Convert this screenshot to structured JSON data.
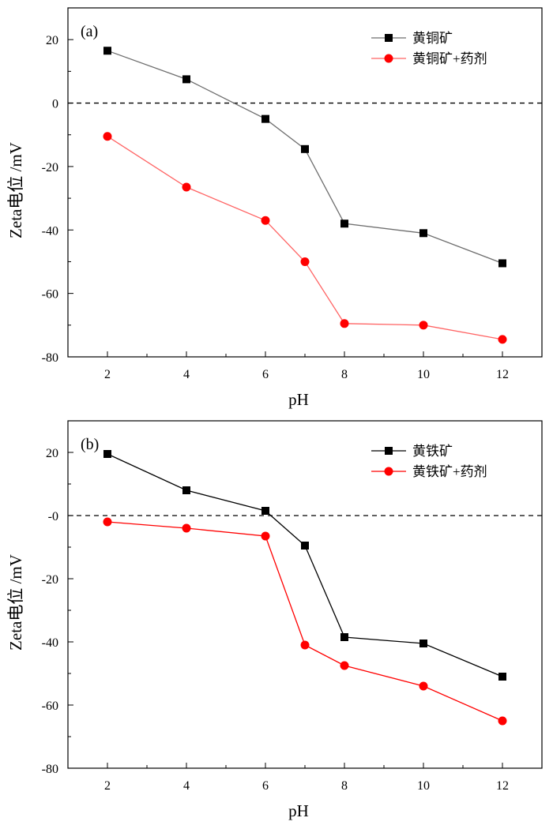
{
  "chart_data": [
    {
      "type": "line",
      "panel_label": "(a)",
      "xlabel": "pH",
      "ylabel": "Zeta电位 /mV",
      "x_ticks": [
        "2",
        "4",
        "6",
        "8",
        "10",
        "12"
      ],
      "y_ticks": [
        "20",
        "0",
        "-20",
        "-40",
        "-60",
        "-80"
      ],
      "xlim": [
        1,
        13
      ],
      "ylim": [
        -80,
        30
      ],
      "x": [
        2,
        4,
        6,
        7,
        8,
        10,
        12
      ],
      "reference_line": 0,
      "legend_position": "top-right",
      "series": [
        {
          "name": "黄铜矿",
          "marker": "square",
          "color": "#000000",
          "line_color": "#6e6e6e",
          "values": [
            16.5,
            7.5,
            -5,
            -14.5,
            -38,
            -41,
            -50.5
          ]
        },
        {
          "name": "黄铜矿+药剂",
          "marker": "circle",
          "color": "#ff0000",
          "line_color": "#ff6464",
          "values": [
            -10.5,
            -26.5,
            -37,
            -50,
            -69.5,
            -70,
            -74.5
          ]
        }
      ]
    },
    {
      "type": "line",
      "panel_label": "(b)",
      "xlabel": "pH",
      "ylabel": "Zeta电位 /mV",
      "x_ticks": [
        "2",
        "4",
        "6",
        "8",
        "10",
        "12"
      ],
      "y_ticks": [
        "20",
        "-0",
        "-20",
        "-40",
        "-60",
        "-80"
      ],
      "xlim": [
        1,
        13
      ],
      "ylim": [
        -80,
        30
      ],
      "x": [
        2,
        4,
        6,
        7,
        8,
        10,
        12
      ],
      "reference_line": 0,
      "legend_position": "top-right",
      "series": [
        {
          "name": "黄铁矿",
          "marker": "square",
          "color": "#000000",
          "line_color": "#000000",
          "values": [
            19.5,
            8,
            1.5,
            -9.5,
            -38.5,
            -40.5,
            -51
          ]
        },
        {
          "name": "黄铁矿+药剂",
          "marker": "circle",
          "color": "#ff0000",
          "line_color": "#ff0000",
          "values": [
            -2,
            -4,
            -6.5,
            -41,
            -47.5,
            -54,
            -65
          ]
        }
      ]
    }
  ]
}
